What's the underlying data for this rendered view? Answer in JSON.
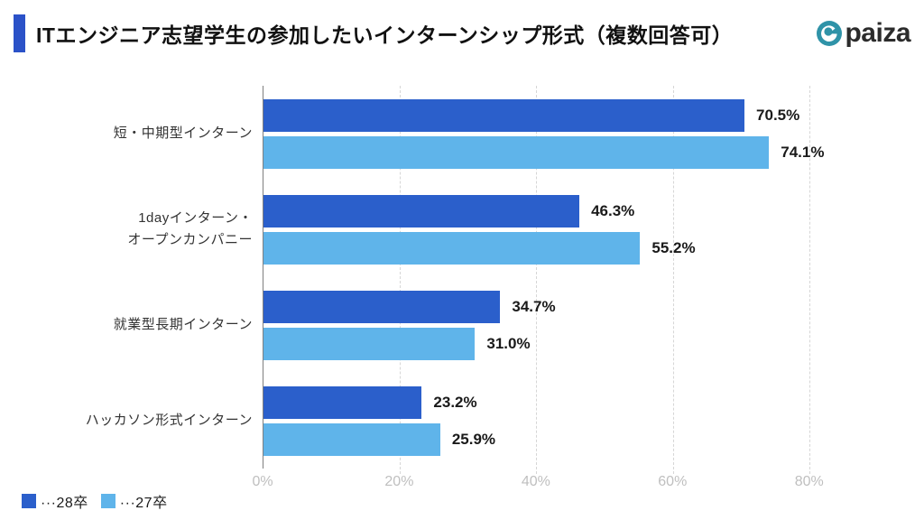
{
  "header": {
    "title": "ITエンジニア志望学生の参加したいインターンシップ形式（複数回答可）",
    "accent_color": "#2b52c8",
    "brand_text": "paiza",
    "brand_icon_color": "#2f93a8"
  },
  "chart_data": {
    "type": "bar",
    "orientation": "horizontal",
    "title": "ITエンジニア志望学生の参加したいインターンシップ形式（複数回答可）",
    "categories": [
      "短・中期型インターン",
      "1dayインターン・\nオープンカンパニー",
      "就業型長期インターン",
      "ハッカソン形式インターン"
    ],
    "series": [
      {
        "name": "···28卒",
        "color": "#2b5fcb",
        "values": [
          70.5,
          46.3,
          34.7,
          23.2
        ],
        "labels": [
          "70.5%",
          "46.3%",
          "34.7%",
          "23.2%"
        ]
      },
      {
        "name": "···27卒",
        "color": "#5fb4ea",
        "values": [
          74.1,
          55.2,
          31.0,
          25.9
        ],
        "labels": [
          "74.1%",
          "55.2%",
          "31.0%",
          "25.9%"
        ]
      }
    ],
    "x_tick_values": [
      0,
      20,
      40,
      60,
      80
    ],
    "x_tick_labels": [
      "0%",
      "20%",
      "40%",
      "60%",
      "80%"
    ],
    "xlim": [
      0,
      94.3
    ],
    "grid": "vertical-dashed",
    "gridline_color": "#d6d6d6",
    "axis_line_color": "#7f7f7f",
    "tick_label_color": "#bfbfbf",
    "legend_position": "bottom-left"
  }
}
